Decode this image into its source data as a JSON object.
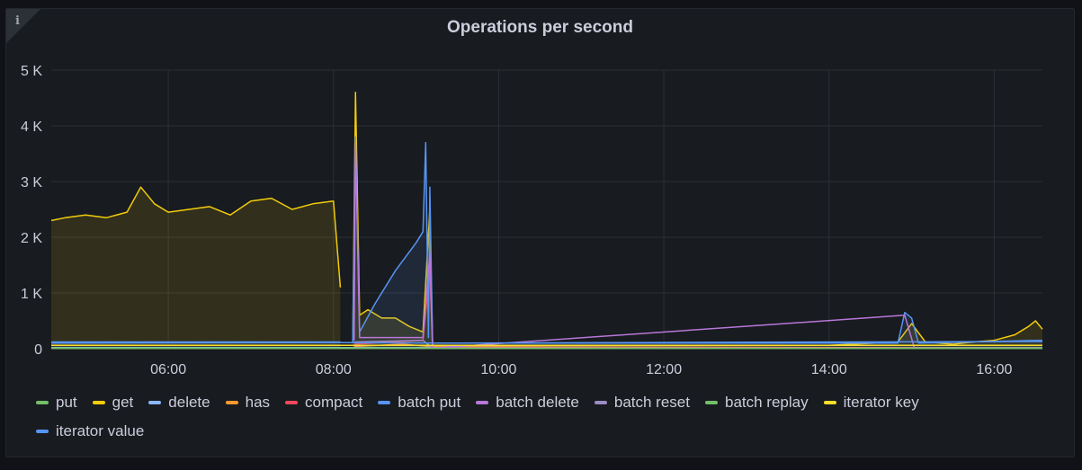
{
  "panel": {
    "title": "Operations per second",
    "info_icon": "i"
  },
  "chart_data": {
    "type": "line",
    "title": "Operations per second",
    "xlabel": "",
    "ylabel": "",
    "x_ticks": [
      "06:00",
      "08:00",
      "10:00",
      "12:00",
      "14:00",
      "16:00"
    ],
    "y_ticks": [
      "0",
      "1 K",
      "2 K",
      "3 K",
      "4 K",
      "5 K"
    ],
    "xlim": [
      "04:35",
      "16:35"
    ],
    "ylim": [
      0,
      5000
    ],
    "grid": true,
    "legend_position": "bottom",
    "series": [
      {
        "name": "put",
        "color": "#73bf69",
        "points": [
          [
            "04:35",
            20
          ],
          [
            "16:35",
            20
          ]
        ]
      },
      {
        "name": "get",
        "color": "#f2cc0c",
        "fill": true,
        "points": [
          [
            "04:35",
            2300
          ],
          [
            "04:45",
            2350
          ],
          [
            "05:00",
            2400
          ],
          [
            "05:15",
            2350
          ],
          [
            "05:30",
            2450
          ],
          [
            "05:40",
            2900
          ],
          [
            "05:50",
            2600
          ],
          [
            "06:00",
            2450
          ],
          [
            "06:15",
            2500
          ],
          [
            "06:30",
            2550
          ],
          [
            "06:45",
            2400
          ],
          [
            "07:00",
            2650
          ],
          [
            "07:15",
            2700
          ],
          [
            "07:30",
            2500
          ],
          [
            "07:45",
            2600
          ],
          [
            "08:00",
            2650
          ],
          [
            "08:05",
            1100
          ],
          [
            "08:10",
            null
          ],
          [
            "08:14",
            100
          ],
          [
            "08:16",
            4600
          ],
          [
            "08:19",
            600
          ],
          [
            "08:25",
            700
          ],
          [
            "08:35",
            550
          ],
          [
            "08:45",
            550
          ],
          [
            "08:55",
            400
          ],
          [
            "09:05",
            300
          ],
          [
            "09:10",
            2500
          ],
          [
            "09:12",
            60
          ],
          [
            "09:30",
            60
          ],
          [
            "12:00",
            60
          ],
          [
            "14:00",
            60
          ],
          [
            "14:50",
            120
          ],
          [
            "15:00",
            450
          ],
          [
            "15:10",
            120
          ],
          [
            "15:30",
            80
          ],
          [
            "15:45",
            120
          ],
          [
            "16:00",
            150
          ],
          [
            "16:15",
            250
          ],
          [
            "16:25",
            400
          ],
          [
            "16:30",
            500
          ],
          [
            "16:35",
            350
          ]
        ]
      },
      {
        "name": "delete",
        "color": "#8ab8ff",
        "points": [
          [
            "04:35",
            10
          ],
          [
            "16:35",
            10
          ]
        ]
      },
      {
        "name": "has",
        "color": "#ff9830",
        "points": [
          [
            "08:15",
            40
          ],
          [
            "08:50",
            80
          ],
          [
            "09:10",
            40
          ],
          [
            "16:35",
            10
          ]
        ]
      },
      {
        "name": "compact",
        "color": "#f2495c",
        "points": [
          [
            "08:15",
            80
          ],
          [
            "09:05",
            150
          ],
          [
            "09:10",
            1400
          ],
          [
            "09:12",
            10
          ],
          [
            "16:35",
            10
          ]
        ]
      },
      {
        "name": "batch put",
        "color": "#5794f2",
        "fill": true,
        "points": [
          [
            "04:35",
            120
          ],
          [
            "08:05",
            120
          ],
          [
            "08:10",
            null
          ],
          [
            "08:14",
            100
          ],
          [
            "08:16",
            3800
          ],
          [
            "08:19",
            300
          ],
          [
            "08:30",
            800
          ],
          [
            "08:45",
            1400
          ],
          [
            "09:00",
            1900
          ],
          [
            "09:05",
            2100
          ],
          [
            "09:07",
            3700
          ],
          [
            "09:09",
            200
          ],
          [
            "09:10",
            2900
          ],
          [
            "09:12",
            100
          ],
          [
            "12:00",
            100
          ],
          [
            "14:50",
            100
          ],
          [
            "14:55",
            650
          ],
          [
            "15:00",
            550
          ],
          [
            "15:05",
            100
          ],
          [
            "16:35",
            150
          ]
        ]
      },
      {
        "name": "batch delete",
        "color": "#b877d9",
        "points": [
          [
            "08:15",
            150
          ],
          [
            "08:16",
            3700
          ],
          [
            "08:19",
            200
          ],
          [
            "09:05",
            200
          ],
          [
            "09:10",
            1700
          ],
          [
            "09:12",
            10
          ],
          [
            "14:55",
            600
          ],
          [
            "15:02",
            10
          ],
          [
            "16:35",
            10
          ]
        ]
      },
      {
        "name": "batch reset",
        "color": "#9b8dc4",
        "points": [
          [
            "08:15",
            120
          ],
          [
            "09:05",
            150
          ],
          [
            "09:12",
            10
          ],
          [
            "16:35",
            10
          ]
        ]
      },
      {
        "name": "batch replay",
        "color": "#73bf69",
        "points": [
          [
            "04:35",
            5
          ],
          [
            "16:35",
            5
          ]
        ]
      },
      {
        "name": "iterator key",
        "color": "#fade2a",
        "points": [
          [
            "04:35",
            60
          ],
          [
            "16:35",
            60
          ]
        ]
      },
      {
        "name": "iterator value",
        "color": "#5794f2",
        "points": [
          [
            "04:35",
            100
          ],
          [
            "08:05",
            110
          ],
          [
            "09:15",
            100
          ],
          [
            "16:35",
            130
          ]
        ]
      }
    ]
  }
}
